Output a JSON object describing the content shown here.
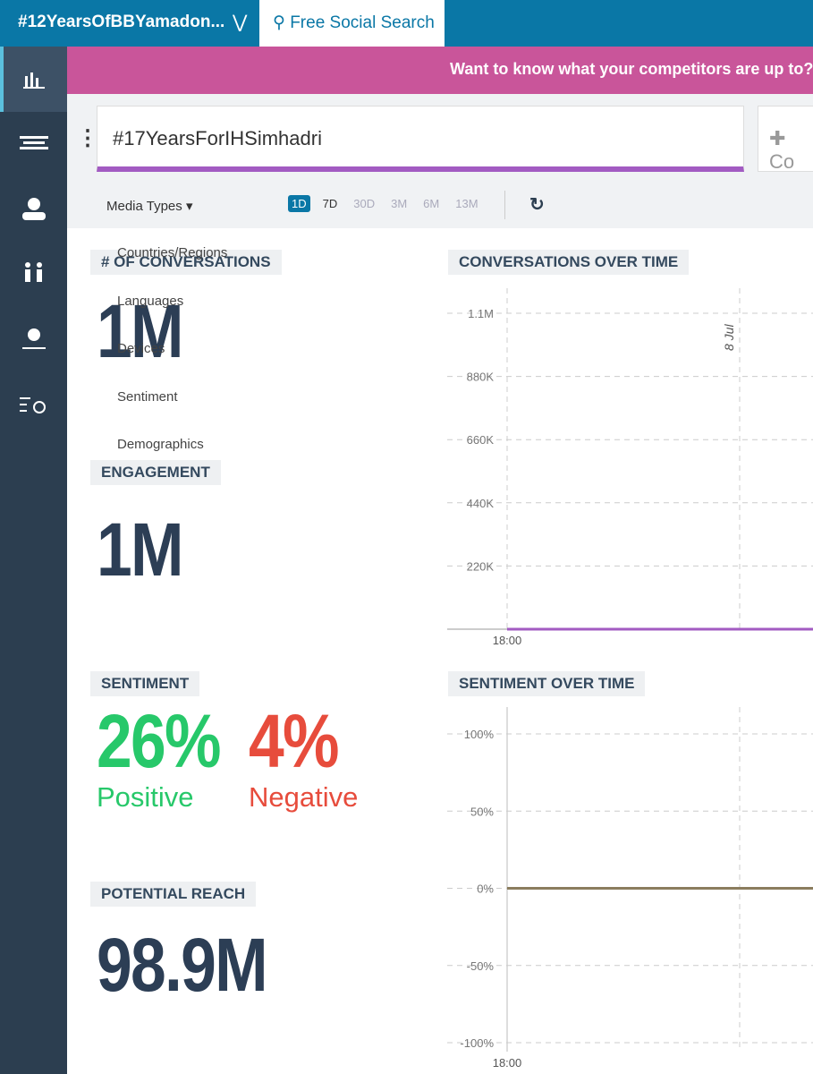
{
  "top_bar": {
    "tabs": [
      "#12YearsOfBBYamadon...",
      "Free Social Search"
    ]
  },
  "banner": "Want to know what your competitors are up to? Cli",
  "search": {
    "query": "#17YearsForIHSimhadri",
    "add_label": "Co"
  },
  "toolbar": {
    "media_types": "Media Types",
    "ranges": [
      "1D",
      "7D",
      "30D",
      "3M",
      "6M",
      "13M"
    ]
  },
  "dropdown": [
    "Countries/Regions",
    "Languages",
    "Devices",
    "Sentiment",
    "Demographics"
  ],
  "metrics": {
    "conversations": {
      "label": "# OF CONVERSATIONS",
      "value": "1M"
    },
    "engagement": {
      "label": "ENGAGEMENT",
      "value": "1M"
    },
    "sentiment": {
      "label": "SENTIMENT",
      "positive": "26%",
      "positive_label": "Positive",
      "negative": "4%",
      "negative_label": "Negative"
    },
    "reach": {
      "label": "POTENTIAL REACH",
      "value": "98.9M"
    }
  },
  "charts": [
    {
      "type": "line",
      "title": "CONVERSATIONS OVER TIME",
      "annotation": "8 Jul",
      "x": [
        "18:00",
        null
      ],
      "ylim": [
        0,
        1100000
      ],
      "yticks": [
        {
          "value": 220000,
          "label": "220K"
        },
        {
          "value": 440000,
          "label": "440K"
        },
        {
          "value": 660000,
          "label": "660K"
        },
        {
          "value": 880000,
          "label": "880K"
        },
        {
          "value": 1100000,
          "label": "1.1M"
        }
      ],
      "series": [
        {
          "color": "#a25bc2",
          "values": [
            0,
            0
          ]
        }
      ]
    },
    {
      "type": "line",
      "title": "SENTIMENT OVER TIME",
      "x": [
        "18:00",
        null
      ],
      "ylim": [
        -100,
        100
      ],
      "yticks": [
        {
          "value": -100,
          "label": "-100%"
        },
        {
          "value": -50,
          "label": "-50%"
        },
        {
          "value": 0,
          "label": "0%"
        },
        {
          "value": 50,
          "label": "50%"
        },
        {
          "value": 100,
          "label": "100%"
        }
      ],
      "series": [
        {
          "color": "#8b7d5e",
          "values": [
            0,
            0
          ]
        }
      ]
    }
  ]
}
